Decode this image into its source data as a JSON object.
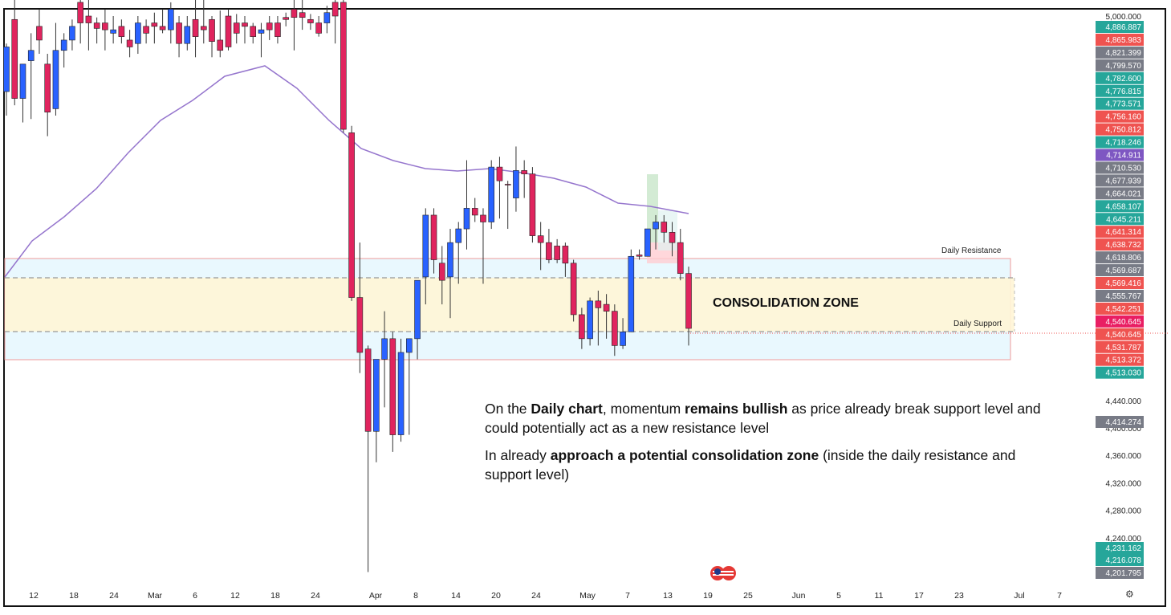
{
  "chart_data": {
    "type": "candlestick",
    "y_scale": {
      "max": 5000,
      "min": 4190
    },
    "x_axis_labels": [
      "12",
      "18",
      "24",
      "Mar",
      "6",
      "12",
      "18",
      "24",
      "Apr",
      "8",
      "14",
      "20",
      "24",
      "May",
      "7",
      "13",
      "19",
      "25",
      "Jun",
      "5",
      "11",
      "17",
      "23",
      "Jul",
      "7"
    ],
    "y_axis_labels": [
      "5,000.000",
      "4,440.000",
      "4,400.000",
      "4,360.000",
      "4,320.000",
      "4,280.000",
      "4,240.000"
    ],
    "price_badges": [
      {
        "value": "4,886.887",
        "color": "#26a69a"
      },
      {
        "value": "4,865.983",
        "color": "#ef5350"
      },
      {
        "value": "4,821.399",
        "color": "#787b86"
      },
      {
        "value": "4,799.570",
        "color": "#787b86"
      },
      {
        "value": "4,782.600",
        "color": "#26a69a"
      },
      {
        "value": "4,776.815",
        "color": "#26a69a"
      },
      {
        "value": "4,773.571",
        "color": "#26a69a"
      },
      {
        "value": "4,756.160",
        "color": "#ef5350"
      },
      {
        "value": "4,750.812",
        "color": "#ef5350"
      },
      {
        "value": "4,718.246",
        "color": "#26a69a"
      },
      {
        "value": "4,714.911",
        "color": "#7e57c2"
      },
      {
        "value": "4,710.530",
        "color": "#787b86"
      },
      {
        "value": "4,677.939",
        "color": "#787b86"
      },
      {
        "value": "4,664.021",
        "color": "#787b86"
      },
      {
        "value": "4,658.107",
        "color": "#26a69a"
      },
      {
        "value": "4,645.211",
        "color": "#26a69a"
      },
      {
        "value": "4,641.314",
        "color": "#ef5350"
      },
      {
        "value": "4,638.732",
        "color": "#ef5350"
      },
      {
        "value": "4,618.806",
        "color": "#787b86"
      },
      {
        "value": "4,569.687",
        "color": "#787b86"
      },
      {
        "value": "4,569.416",
        "color": "#ef5350"
      },
      {
        "value": "4,555.767",
        "color": "#787b86"
      },
      {
        "value": "4,542.251",
        "color": "#ef5350"
      },
      {
        "value": "4,540.645",
        "color": "#e91e63"
      },
      {
        "value": "4,540.645",
        "color": "#ef5350"
      },
      {
        "value": "4,531.787",
        "color": "#ef5350"
      },
      {
        "value": "4,513.372",
        "color": "#ef5350"
      },
      {
        "value": "4,513.030",
        "color": "#26a69a"
      }
    ],
    "lower_badges": [
      {
        "value": "4,414.274",
        "color": "#787b86"
      },
      {
        "value": "4,231.162",
        "color": "#26a69a"
      },
      {
        "value": "4,216.078",
        "color": "#26a69a"
      },
      {
        "value": "4,201.795",
        "color": "#787b86"
      }
    ],
    "zones": {
      "daily_resistance": {
        "label": "Daily Resistance"
      },
      "daily_support": {
        "label": "Daily Support"
      },
      "consolidation": {
        "label": "CONSOLIDATION ZONE"
      }
    },
    "candles": [
      {
        "o": 4890,
        "h": 4960,
        "l": 4855,
        "c": 4955,
        "bull": true
      },
      {
        "o": 4995,
        "h": 5040,
        "l": 4870,
        "c": 4880,
        "bull": false
      },
      {
        "o": 4880,
        "h": 4930,
        "l": 4845,
        "c": 4930,
        "bull": true
      },
      {
        "o": 4935,
        "h": 4975,
        "l": 4850,
        "c": 4950,
        "bull": true
      },
      {
        "o": 4985,
        "h": 5010,
        "l": 4945,
        "c": 4965,
        "bull": false
      },
      {
        "o": 4930,
        "h": 4945,
        "l": 4825,
        "c": 4860,
        "bull": false
      },
      {
        "o": 4865,
        "h": 4990,
        "l": 4855,
        "c": 4950,
        "bull": true
      },
      {
        "o": 4950,
        "h": 4975,
        "l": 4925,
        "c": 4965,
        "bull": true
      },
      {
        "o": 4965,
        "h": 4995,
        "l": 4950,
        "c": 4985,
        "bull": true
      },
      {
        "o": 5020,
        "h": 5040,
        "l": 4960,
        "c": 4990,
        "bull": false
      },
      {
        "o": 4990,
        "h": 5030,
        "l": 4950,
        "c": 5000,
        "bull": false
      },
      {
        "o": 4990,
        "h": 4998,
        "l": 4960,
        "c": 4982,
        "bull": false
      },
      {
        "o": 4990,
        "h": 5010,
        "l": 4950,
        "c": 4980,
        "bull": false
      },
      {
        "o": 4980,
        "h": 5000,
        "l": 4960,
        "c": 4975,
        "bull": true
      },
      {
        "o": 4985,
        "h": 4995,
        "l": 4960,
        "c": 4970,
        "bull": false
      },
      {
        "o": 4965,
        "h": 4980,
        "l": 4940,
        "c": 4955,
        "bull": false
      },
      {
        "o": 4960,
        "h": 5000,
        "l": 4945,
        "c": 4990,
        "bull": true
      },
      {
        "o": 4985,
        "h": 4995,
        "l": 4960,
        "c": 4975,
        "bull": false
      },
      {
        "o": 4990,
        "h": 5005,
        "l": 4960,
        "c": 4985,
        "bull": false
      },
      {
        "o": 4985,
        "h": 5010,
        "l": 4975,
        "c": 4980,
        "bull": false
      },
      {
        "o": 4980,
        "h": 5020,
        "l": 4960,
        "c": 5010,
        "bull": true
      },
      {
        "o": 4990,
        "h": 5000,
        "l": 4940,
        "c": 4960,
        "bull": false
      },
      {
        "o": 4960,
        "h": 5000,
        "l": 4950,
        "c": 4985,
        "bull": true
      },
      {
        "o": 4995,
        "h": 5030,
        "l": 4940,
        "c": 4970,
        "bull": false
      },
      {
        "o": 4980,
        "h": 5040,
        "l": 4960,
        "c": 4985,
        "bull": false
      },
      {
        "o": 4995,
        "h": 5000,
        "l": 4940,
        "c": 4963,
        "bull": false
      },
      {
        "o": 4965,
        "h": 5008,
        "l": 4940,
        "c": 4950,
        "bull": false
      },
      {
        "o": 5000,
        "h": 5010,
        "l": 4950,
        "c": 4955,
        "bull": false
      },
      {
        "o": 4990,
        "h": 5003,
        "l": 4960,
        "c": 4975,
        "bull": false
      },
      {
        "o": 4990,
        "h": 5000,
        "l": 4960,
        "c": 4985,
        "bull": false
      },
      {
        "o": 4985,
        "h": 4990,
        "l": 4960,
        "c": 4970,
        "bull": false
      },
      {
        "o": 4975,
        "h": 4990,
        "l": 4940,
        "c": 4980,
        "bull": true
      },
      {
        "o": 4980,
        "h": 5000,
        "l": 4965,
        "c": 4990,
        "bull": false
      },
      {
        "o": 4990,
        "h": 5000,
        "l": 4960,
        "c": 4970,
        "bull": false
      },
      {
        "o": 4995,
        "h": 5005,
        "l": 4985,
        "c": 4998,
        "bull": false
      },
      {
        "o": 4998,
        "h": 5040,
        "l": 4950,
        "c": 5010,
        "bull": false
      },
      {
        "o": 5005,
        "h": 5030,
        "l": 4980,
        "c": 4998,
        "bull": false
      },
      {
        "o": 4995,
        "h": 5003,
        "l": 4980,
        "c": 4990,
        "bull": false
      },
      {
        "o": 4990,
        "h": 5000,
        "l": 4970,
        "c": 4975,
        "bull": false
      },
      {
        "o": 4990,
        "h": 5015,
        "l": 4975,
        "c": 5005,
        "bull": true
      },
      {
        "o": 5000,
        "h": 5030,
        "l": 4960,
        "c": 5020,
        "bull": false
      },
      {
        "o": 5020,
        "h": 5040,
        "l": 4830,
        "c": 4835,
        "bull": false
      },
      {
        "o": 4830,
        "h": 4840,
        "l": 4585,
        "c": 4590,
        "bull": false
      },
      {
        "o": 4590,
        "h": 4670,
        "l": 4480,
        "c": 4510,
        "bull": false
      },
      {
        "o": 4515,
        "h": 4520,
        "l": 4190,
        "c": 4395,
        "bull": false
      },
      {
        "o": 4395,
        "h": 4500,
        "l": 4350,
        "c": 4500,
        "bull": true
      },
      {
        "o": 4500,
        "h": 4570,
        "l": 4430,
        "c": 4530,
        "bull": true
      },
      {
        "o": 4530,
        "h": 4540,
        "l": 4365,
        "c": 4390,
        "bull": false
      },
      {
        "o": 4390,
        "h": 4530,
        "l": 4380,
        "c": 4510,
        "bull": true
      },
      {
        "o": 4510,
        "h": 4530,
        "l": 4390,
        "c": 4530,
        "bull": true
      },
      {
        "o": 4530,
        "h": 4610,
        "l": 4500,
        "c": 4615,
        "bull": true
      },
      {
        "o": 4620,
        "h": 4720,
        "l": 4580,
        "c": 4710,
        "bull": true
      },
      {
        "o": 4710,
        "h": 4720,
        "l": 4625,
        "c": 4645,
        "bull": false
      },
      {
        "o": 4640,
        "h": 4665,
        "l": 4580,
        "c": 4615,
        "bull": false
      },
      {
        "o": 4620,
        "h": 4690,
        "l": 4560,
        "c": 4670,
        "bull": true
      },
      {
        "o": 4670,
        "h": 4700,
        "l": 4610,
        "c": 4690,
        "bull": true
      },
      {
        "o": 4690,
        "h": 4790,
        "l": 4660,
        "c": 4720,
        "bull": true
      },
      {
        "o": 4720,
        "h": 4735,
        "l": 4700,
        "c": 4710,
        "bull": false
      },
      {
        "o": 4710,
        "h": 4720,
        "l": 4610,
        "c": 4700,
        "bull": false
      },
      {
        "o": 4700,
        "h": 4790,
        "l": 4690,
        "c": 4780,
        "bull": true
      },
      {
        "o": 4780,
        "h": 4795,
        "l": 4705,
        "c": 4760,
        "bull": false
      },
      {
        "o": 4755,
        "h": 4760,
        "l": 4690,
        "c": 4755,
        "bull": false
      },
      {
        "o": 4735,
        "h": 4810,
        "l": 4715,
        "c": 4775,
        "bull": true
      },
      {
        "o": 4775,
        "h": 4790,
        "l": 4735,
        "c": 4770,
        "bull": false
      },
      {
        "o": 4770,
        "h": 4780,
        "l": 4670,
        "c": 4680,
        "bull": false
      },
      {
        "o": 4680,
        "h": 4700,
        "l": 4630,
        "c": 4670,
        "bull": false
      },
      {
        "o": 4670,
        "h": 4690,
        "l": 4640,
        "c": 4645,
        "bull": false
      },
      {
        "o": 4645,
        "h": 4675,
        "l": 4640,
        "c": 4665,
        "bull": false
      },
      {
        "o": 4665,
        "h": 4670,
        "l": 4620,
        "c": 4640,
        "bull": false
      },
      {
        "o": 4640,
        "h": 4645,
        "l": 4555,
        "c": 4565,
        "bull": false
      },
      {
        "o": 4565,
        "h": 4575,
        "l": 4515,
        "c": 4530,
        "bull": false
      },
      {
        "o": 4530,
        "h": 4590,
        "l": 4520,
        "c": 4585,
        "bull": true
      },
      {
        "o": 4585,
        "h": 4600,
        "l": 4520,
        "c": 4575,
        "bull": false
      },
      {
        "o": 4580,
        "h": 4595,
        "l": 4530,
        "c": 4570,
        "bull": false
      },
      {
        "o": 4570,
        "h": 4580,
        "l": 4505,
        "c": 4520,
        "bull": false
      },
      {
        "o": 4520,
        "h": 4560,
        "l": 4515,
        "c": 4540,
        "bull": true
      },
      {
        "o": 4540,
        "h": 4660,
        "l": 4540,
        "c": 4650,
        "bull": true
      },
      {
        "o": 4650,
        "h": 4660,
        "l": 4645,
        "c": 4652,
        "bull": false
      },
      {
        "o": 4650,
        "h": 4690,
        "l": 4650,
        "c": 4690,
        "bull": true
      },
      {
        "o": 4690,
        "h": 4710,
        "l": 4660,
        "c": 4700,
        "bull": true
      },
      {
        "o": 4700,
        "h": 4710,
        "l": 4670,
        "c": 4685,
        "bull": false
      },
      {
        "o": 4685,
        "h": 4700,
        "l": 4650,
        "c": 4670,
        "bull": false
      },
      {
        "o": 4670,
        "h": 4690,
        "l": 4615,
        "c": 4625,
        "bull": false
      },
      {
        "o": 4625,
        "h": 4635,
        "l": 4520,
        "c": 4545,
        "bull": false
      }
    ]
  },
  "annotation": {
    "p1_a": "On the ",
    "p1_b": "Daily chart",
    "p1_c": ", momentum ",
    "p1_d": "remains bullish",
    "p1_e": " as price already break support level and could potentially act as a new resistance level",
    "p2_a": "In already ",
    "p2_b": "approach a potential consolidation zone",
    "p2_c": " (inside the daily resistance and support level)"
  }
}
